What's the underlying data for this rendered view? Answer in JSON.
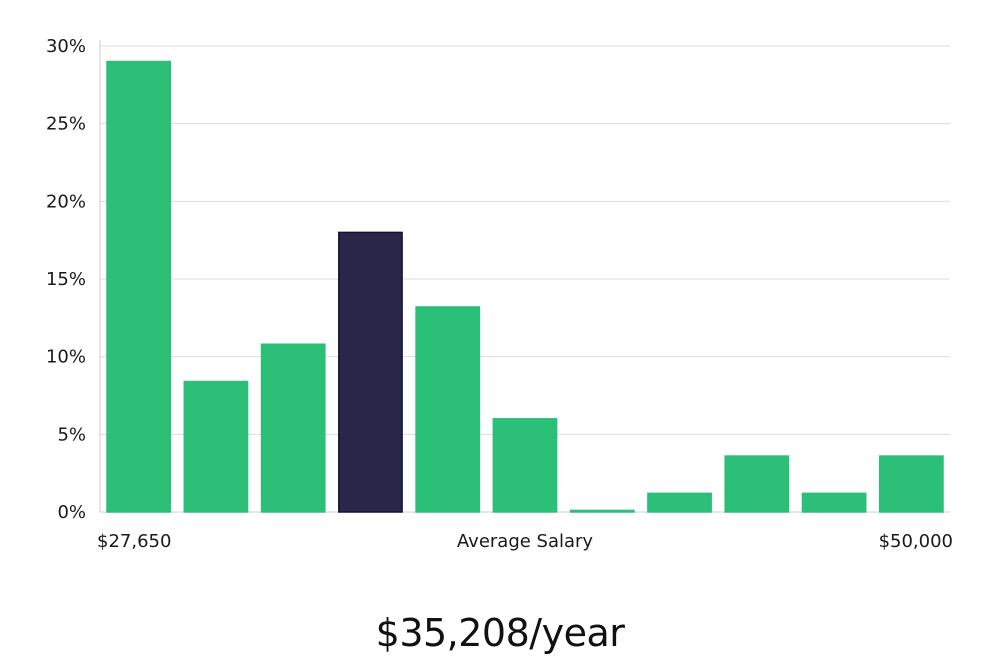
{
  "colors": {
    "bar": "#2bbf78",
    "bar_highlight": "#29264a",
    "bar_highlight_stroke": "#141230",
    "grid": "#dcdcdc",
    "axis": "#cfcfcf",
    "text": "#1a1a1a"
  },
  "chart_data": {
    "type": "bar",
    "title": "",
    "xlabel": "Average Salary",
    "ylabel": "",
    "x_start_label": "$27,650",
    "x_end_label": "$50,000",
    "ylim": [
      0,
      30
    ],
    "yticks": [
      0,
      5,
      10,
      15,
      20,
      25,
      30
    ],
    "ytick_labels": [
      "0%",
      "5%",
      "10%",
      "15%",
      "20%",
      "25%",
      "30%"
    ],
    "values": [
      29,
      8.4,
      10.8,
      18,
      13.2,
      6,
      0.1,
      1.2,
      3.6,
      1.2,
      3.6
    ],
    "highlight_index": 3,
    "grid": true
  },
  "summary": {
    "average_salary_text": "$35,208/year"
  }
}
